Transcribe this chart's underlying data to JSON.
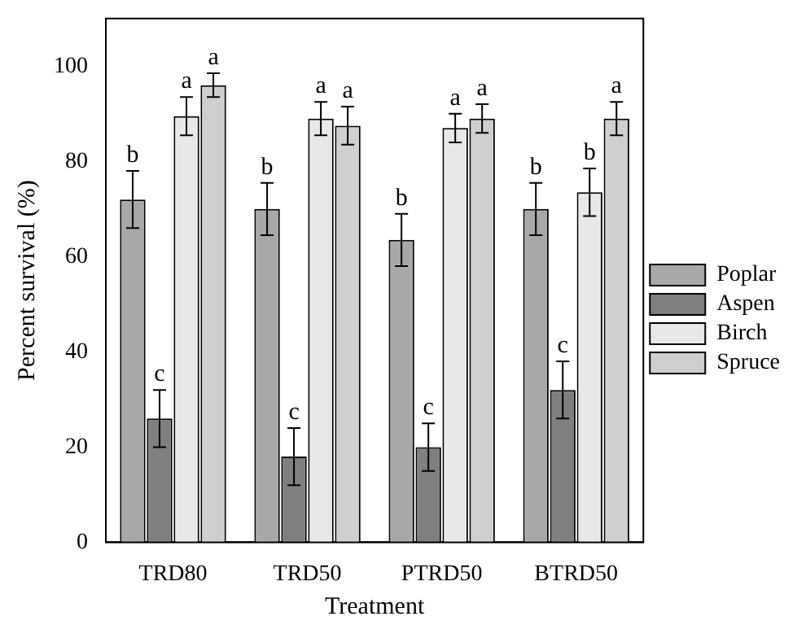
{
  "chart_data": {
    "type": "bar",
    "xlabel": "Treatment",
    "ylabel": "Percent survival (%)",
    "categories": [
      "TRD80",
      "TRD50",
      "PTRD50",
      "BTRD50"
    ],
    "series": [
      {
        "name": "Poplar",
        "color": "#a8a8a8",
        "values": [
          72,
          70,
          63.5,
          70
        ],
        "errors": [
          6,
          5.5,
          5.5,
          5.5
        ]
      },
      {
        "name": "Aspen",
        "color": "#7f7f7f",
        "values": [
          26,
          18,
          20,
          32
        ],
        "errors": [
          6,
          6,
          5,
          6
        ]
      },
      {
        "name": "Birch",
        "color": "#e8e8e8",
        "values": [
          89.5,
          89,
          87,
          73.5
        ],
        "errors": [
          4,
          3.5,
          3,
          5
        ]
      },
      {
        "name": "Spruce",
        "color": "#cfcfcf",
        "values": [
          96,
          87.5,
          89,
          89
        ],
        "errors": [
          2.5,
          4,
          3,
          3.5
        ]
      }
    ],
    "ylim": [
      0,
      110
    ],
    "yticks": [
      0,
      20,
      40,
      60,
      80,
      100
    ],
    "grid": false,
    "legend": "right",
    "annotations": [
      {
        "text": "b",
        "x": "TRD80",
        "y": 72
      },
      {
        "text": "c",
        "x": "TRD80",
        "y": 26
      },
      {
        "text": "a",
        "x": "TRD80",
        "y": 89.5
      },
      "a",
      {
        "text": "b",
        "x": "TRD50",
        "y": 70
      },
      {
        "text": "c",
        "x": "TRD50",
        "y": 18
      },
      {
        "text": "a",
        "x": "TRD50",
        "y": 89
      },
      {
        "text": "a",
        "x": "TRD50",
        "y": 87.5
      },
      {
        "text": "b",
        "x": "PTRD50",
        "y": 63.5
      },
      {
        "text": "c",
        "x": "PTRD50",
        "y": 20
      },
      {
        "text": "a",
        "x": "PTRD50",
        "y": 87
      },
      "a",
      {
        "text": "b",
        "x": "BTRD50",
        "y": 70
      },
      {
        "text": "c",
        "x": "BTRD50",
        "y": 32
      },
      {
        "text": "b",
        "x": "BTRD50",
        "y": 73.5
      },
      "a"
    ]
  }
}
